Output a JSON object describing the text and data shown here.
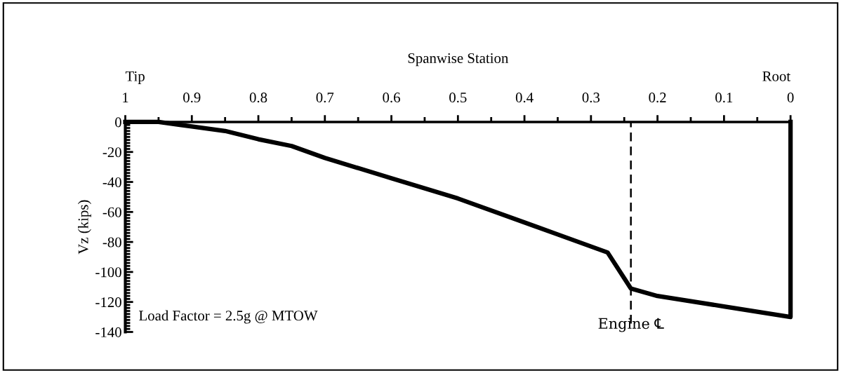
{
  "chart_data": {
    "type": "line",
    "xlabel": "Spanwise Station",
    "ylabel": "Vz (kips)",
    "x": [
      1,
      0.95,
      0.9,
      0.85,
      0.8,
      0.75,
      0.7,
      0.6,
      0.5,
      0.4,
      0.35,
      0.275,
      0.24,
      0.2,
      0.1,
      0,
      0
    ],
    "series": [
      {
        "color": "#000000",
        "values": [
          0,
          0,
          -3,
          -6,
          -11.5,
          -16,
          -24,
          -37.5,
          -51,
          -67,
          -75,
          -87,
          -111,
          -116,
          -123,
          -130,
          0
        ]
      }
    ],
    "xlim": [
      1,
      0
    ],
    "xticks": [
      1,
      0.9,
      0.8,
      0.7,
      0.6,
      0.5,
      0.4,
      0.3,
      0.2,
      0.1,
      0
    ],
    "ylim": [
      -140,
      0
    ],
    "yticks": [
      0,
      -20,
      -40,
      -60,
      -80,
      -100,
      -120,
      -140
    ],
    "ref_lines": [
      {
        "axis": "x",
        "value": 0.24,
        "label": "Engine ℄",
        "line_style": "dashed",
        "color": "#000000"
      }
    ],
    "annotations": [
      "Tip",
      "Root",
      "Load Factor = 2.5g @ MTOW"
    ],
    "grid": false,
    "legend": false,
    "marker": "none",
    "line_style": "solid"
  }
}
